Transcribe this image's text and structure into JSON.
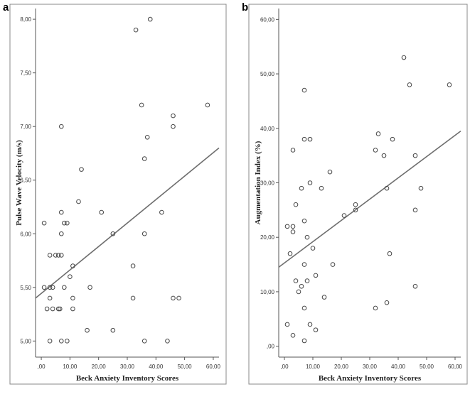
{
  "chart_data": [
    {
      "type": "scatter",
      "panel_label": "a",
      "xlabel": "Beck Anxiety Inventory Scores",
      "ylabel": "Pulse Wave Velocity (m/s)",
      "xlim": [
        -2,
        62
      ],
      "ylim": [
        4.85,
        8.1
      ],
      "xticks": [
        ",00",
        "10,00",
        "20,00",
        "30,00",
        "40,00",
        "50,00",
        "60,00"
      ],
      "xtick_values": [
        0,
        10,
        20,
        30,
        40,
        50,
        60
      ],
      "yticks": [
        "5,00",
        "5,50",
        "6,00",
        "6,50",
        "7,00",
        "7,50",
        "8,00"
      ],
      "ytick_values": [
        5,
        5.5,
        6,
        6.5,
        7,
        7.5,
        8
      ],
      "grid": false,
      "fit_line": {
        "x": [
          -2,
          62
        ],
        "y": [
          5.4,
          6.8
        ]
      },
      "points": [
        {
          "x": 1,
          "y": 6.1
        },
        {
          "x": 1,
          "y": 5.5
        },
        {
          "x": 2,
          "y": 5.3
        },
        {
          "x": 3,
          "y": 5.8
        },
        {
          "x": 3,
          "y": 5.5
        },
        {
          "x": 3,
          "y": 5.4
        },
        {
          "x": 3,
          "y": 5.0
        },
        {
          "x": 4,
          "y": 5.5
        },
        {
          "x": 4,
          "y": 5.3
        },
        {
          "x": 5,
          "y": 5.8
        },
        {
          "x": 6,
          "y": 5.3
        },
        {
          "x": 6,
          "y": 5.8
        },
        {
          "x": 6.5,
          "y": 5.3
        },
        {
          "x": 7,
          "y": 7.0
        },
        {
          "x": 7,
          "y": 6.2
        },
        {
          "x": 7,
          "y": 6.0
        },
        {
          "x": 7,
          "y": 5.8
        },
        {
          "x": 7,
          "y": 5.0
        },
        {
          "x": 8,
          "y": 6.1
        },
        {
          "x": 8,
          "y": 5.5
        },
        {
          "x": 9,
          "y": 6.1
        },
        {
          "x": 9,
          "y": 5.0
        },
        {
          "x": 10,
          "y": 5.6
        },
        {
          "x": 11,
          "y": 5.7
        },
        {
          "x": 11,
          "y": 5.4
        },
        {
          "x": 11,
          "y": 5.3
        },
        {
          "x": 13,
          "y": 6.3
        },
        {
          "x": 14,
          "y": 6.6
        },
        {
          "x": 16,
          "y": 5.1
        },
        {
          "x": 17,
          "y": 5.5
        },
        {
          "x": 21,
          "y": 6.2
        },
        {
          "x": 25,
          "y": 6.0
        },
        {
          "x": 25,
          "y": 5.1
        },
        {
          "x": 32,
          "y": 5.7
        },
        {
          "x": 32,
          "y": 5.4
        },
        {
          "x": 33,
          "y": 7.9
        },
        {
          "x": 35,
          "y": 7.2
        },
        {
          "x": 36,
          "y": 6.7
        },
        {
          "x": 36,
          "y": 6.0
        },
        {
          "x": 36,
          "y": 5.0
        },
        {
          "x": 37,
          "y": 6.9
        },
        {
          "x": 38,
          "y": 8.0
        },
        {
          "x": 42,
          "y": 6.2
        },
        {
          "x": 44,
          "y": 5.0
        },
        {
          "x": 46,
          "y": 7.1
        },
        {
          "x": 46,
          "y": 7.0
        },
        {
          "x": 46,
          "y": 5.4
        },
        {
          "x": 48,
          "y": 5.4
        },
        {
          "x": 58,
          "y": 7.2
        }
      ]
    },
    {
      "type": "scatter",
      "panel_label": "b",
      "xlabel": "Beck Anxiety Inventory Scores",
      "ylabel": "Augmentation Index (%)",
      "xlim": [
        -2,
        62
      ],
      "ylim": [
        -2,
        62
      ],
      "xticks": [
        ",00",
        "10,00",
        "20,00",
        "30,00",
        "40,00",
        "50,00",
        "60,00"
      ],
      "xtick_values": [
        0,
        10,
        20,
        30,
        40,
        50,
        60
      ],
      "yticks": [
        ",00",
        "10,00",
        "20,00",
        "30,00",
        "40,00",
        "50,00",
        "60,00"
      ],
      "ytick_values": [
        0,
        10,
        20,
        30,
        40,
        50,
        60
      ],
      "grid": false,
      "fit_line": {
        "x": [
          -2,
          62
        ],
        "y": [
          14.5,
          39.5
        ]
      },
      "points": [
        {
          "x": 1,
          "y": 22
        },
        {
          "x": 1,
          "y": 4
        },
        {
          "x": 2,
          "y": 17
        },
        {
          "x": 3,
          "y": 36
        },
        {
          "x": 3,
          "y": 22
        },
        {
          "x": 3,
          "y": 21
        },
        {
          "x": 3,
          "y": 2
        },
        {
          "x": 4,
          "y": 26
        },
        {
          "x": 4,
          "y": 12
        },
        {
          "x": 5,
          "y": 10
        },
        {
          "x": 6,
          "y": 29
        },
        {
          "x": 6,
          "y": 11
        },
        {
          "x": 7,
          "y": 47
        },
        {
          "x": 7,
          "y": 38
        },
        {
          "x": 7,
          "y": 23
        },
        {
          "x": 7,
          "y": 15
        },
        {
          "x": 7,
          "y": 7
        },
        {
          "x": 7,
          "y": 1
        },
        {
          "x": 8,
          "y": 20
        },
        {
          "x": 8,
          "y": 12
        },
        {
          "x": 9,
          "y": 38
        },
        {
          "x": 9,
          "y": 30
        },
        {
          "x": 9,
          "y": 4
        },
        {
          "x": 10,
          "y": 18
        },
        {
          "x": 11,
          "y": 13
        },
        {
          "x": 11,
          "y": 3
        },
        {
          "x": 13,
          "y": 29
        },
        {
          "x": 14,
          "y": 9
        },
        {
          "x": 16,
          "y": 32
        },
        {
          "x": 17,
          "y": 15
        },
        {
          "x": 21,
          "y": 24
        },
        {
          "x": 25,
          "y": 26
        },
        {
          "x": 25,
          "y": 25
        },
        {
          "x": 32,
          "y": 36
        },
        {
          "x": 32,
          "y": 7
        },
        {
          "x": 33,
          "y": 39
        },
        {
          "x": 35,
          "y": 35
        },
        {
          "x": 36,
          "y": 29
        },
        {
          "x": 36,
          "y": 8
        },
        {
          "x": 37,
          "y": 17
        },
        {
          "x": 38,
          "y": 38
        },
        {
          "x": 42,
          "y": 53
        },
        {
          "x": 44,
          "y": 48
        },
        {
          "x": 46,
          "y": 35
        },
        {
          "x": 46,
          "y": 25
        },
        {
          "x": 46,
          "y": 11
        },
        {
          "x": 48,
          "y": 29
        },
        {
          "x": 58,
          "y": 48
        }
      ]
    }
  ]
}
